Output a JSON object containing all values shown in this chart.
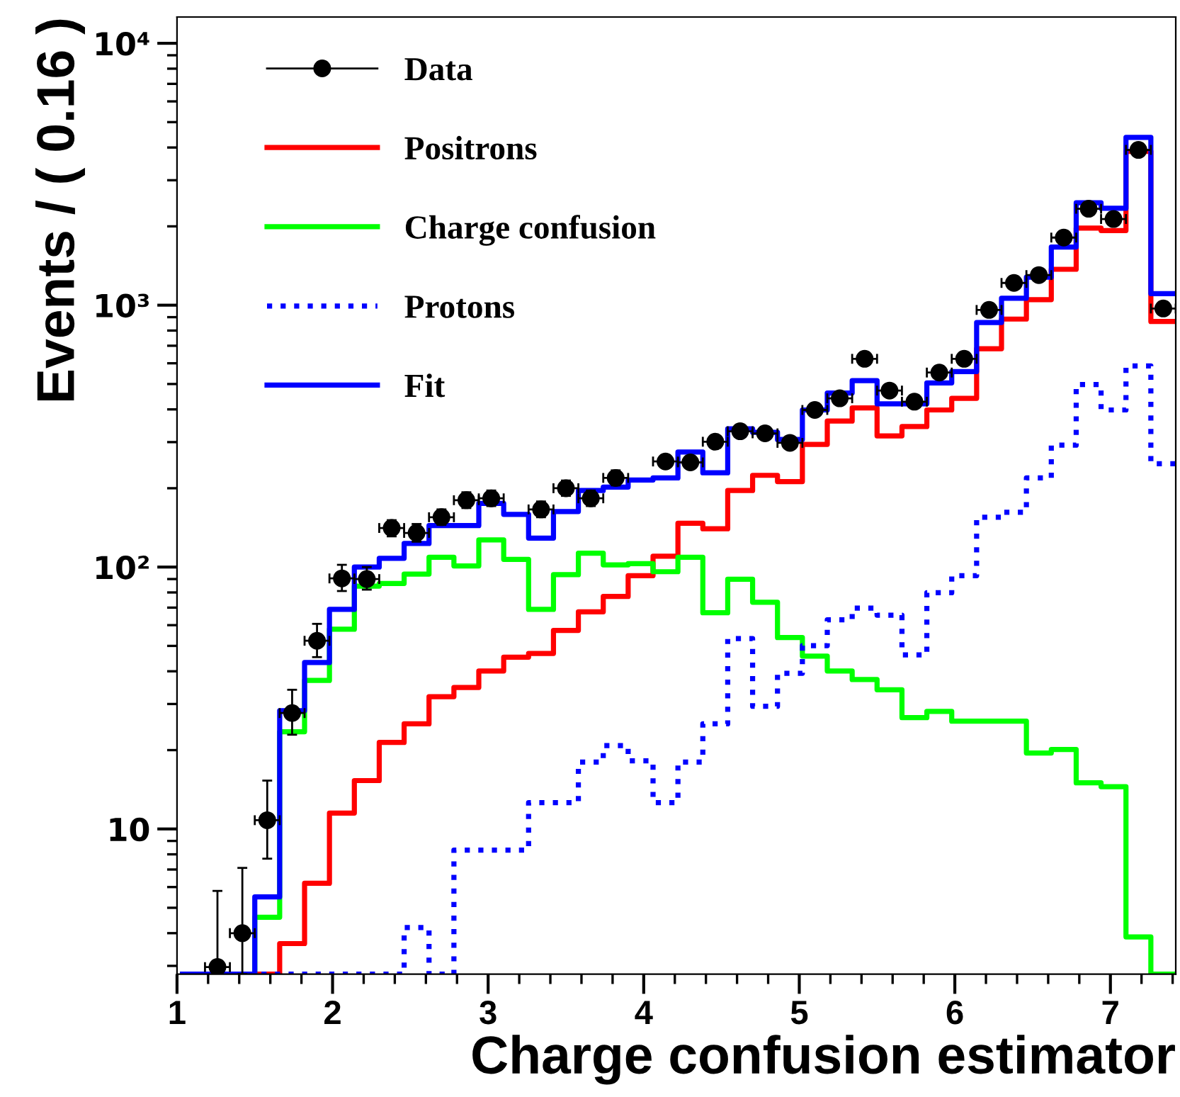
{
  "chart_data": {
    "type": "histogram",
    "xlabel": "Charge confusion estimator",
    "ylabel": "Events / ( 0.16 )",
    "bins": [
      1.02,
      1.18,
      1.34,
      1.5,
      1.66,
      1.82,
      1.98,
      2.14,
      2.3,
      2.46,
      2.62,
      2.78,
      2.94,
      3.1,
      3.26,
      3.42,
      3.58,
      3.74,
      3.9,
      4.06,
      4.22,
      4.38,
      4.54,
      4.7,
      4.86,
      5.02,
      5.18,
      5.34,
      5.5,
      5.66,
      5.82,
      5.98,
      6.14,
      6.3,
      6.46,
      6.62,
      6.78,
      6.94,
      7.1,
      7.26,
      7.42
    ],
    "log": "y",
    "xlim": [
      1,
      7.42
    ],
    "ylim": [
      2.79,
      12600
    ],
    "xticks": [
      1,
      2,
      3,
      4,
      5,
      6,
      7
    ],
    "yticks": [
      {
        "value": 10,
        "label": "10"
      },
      {
        "value": 100,
        "label": "10²"
      },
      {
        "value": 1000,
        "label": "10³"
      },
      {
        "value": 10000,
        "label": "10⁴"
      }
    ],
    "grid": false,
    "legend": "top left",
    "series": [
      {
        "name": "Data",
        "type": "scatter",
        "color": "#000000",
        "marker": "circle",
        "x": [
          1.26,
          1.42,
          1.58,
          1.74,
          1.9,
          2.06,
          2.22,
          2.38,
          2.54,
          2.7,
          2.86,
          3.02,
          3.34,
          3.5,
          3.66,
          3.82,
          4.14,
          4.3,
          4.46,
          4.62,
          4.78,
          4.94,
          5.1,
          5.26,
          5.42,
          5.58,
          5.74,
          5.9,
          6.06,
          6.22,
          6.38,
          6.54,
          6.7,
          6.86,
          7.02,
          7.18,
          7.34
        ],
        "values": [
          2.97,
          4.0,
          10.8,
          27.7,
          52.3,
          90.5,
          90,
          141,
          135,
          155,
          180,
          183,
          166,
          200,
          183,
          219,
          253,
          251,
          301,
          330,
          324,
          298,
          398,
          441,
          624,
          472,
          428,
          553,
          624,
          959,
          1216,
          1303,
          1812,
          2334,
          2133,
          3916,
          971
        ],
        "errors": [
          [
            2.79,
            5.8
          ],
          [
            2.79,
            7.1
          ],
          [
            7.7,
            15.3
          ],
          [
            22.9,
            34
          ],
          [
            45.3,
            60.7
          ],
          [
            81,
            102
          ],
          [
            82,
            100
          ],
          [
            131,
            151
          ],
          [
            125,
            146
          ],
          [
            145,
            166
          ],
          [
            168,
            193
          ],
          [
            171,
            196
          ],
          [
            155,
            178
          ],
          [
            187,
            214
          ],
          [
            171,
            196
          ],
          [
            205,
            234
          ],
          null,
          null,
          null,
          null,
          null,
          null,
          null,
          null,
          null,
          null,
          null,
          null,
          null,
          null,
          null,
          null,
          null,
          null,
          null,
          null,
          null
        ],
        "xerrors": [
          0.08,
          0.08,
          0.08,
          0.08,
          0.08,
          0.08,
          0.08,
          0.08,
          0.08,
          0.08,
          0.08,
          0.08,
          0.08,
          0.08,
          0.08,
          0.08,
          0.08,
          0.08,
          0.08,
          0.08,
          0.08,
          0.08,
          0.08,
          0.08,
          0.08,
          0.08,
          0.08,
          0.08,
          0.08,
          0.08,
          0.08,
          0.08,
          0.08,
          0.08,
          0.08,
          0.08,
          0.08
        ]
      },
      {
        "name": "Positrons",
        "type": "histogram",
        "color": "#ff0000",
        "line_style": "solid",
        "values": [
          null,
          null,
          null,
          null,
          3.65,
          6.2,
          11.5,
          15.3,
          21.4,
          25.2,
          32.0,
          34.7,
          40.1,
          45.3,
          46.8,
          57.3,
          67.5,
          77.2,
          92.7,
          110,
          147,
          140,
          196,
          224,
          212,
          294,
          361,
          405,
          317,
          344,
          398,
          441,
          682,
          885,
          1050,
          1371,
          1968,
          1928,
          3867,
          866
        ]
      },
      {
        "name": "Charge confusion",
        "type": "histogram",
        "color": "#00ff00",
        "line_style": "solid",
        "values": [
          null,
          null,
          null,
          4.6,
          23.5,
          36.9,
          57.9,
          84.6,
          86.6,
          94,
          109,
          101,
          127,
          107,
          68.9,
          93.5,
          113,
          102,
          103,
          96,
          109,
          66.9,
          89.8,
          73.4,
          53.8,
          45.7,
          40.1,
          37.2,
          34.0,
          26.6,
          28.1,
          25.8,
          25.8,
          25.8,
          19.5,
          20.1,
          15.0,
          14.5,
          3.87,
          null
        ]
      },
      {
        "name": "Protons",
        "type": "histogram",
        "color": "#0000ff",
        "line_style": "dotted",
        "values": [
          null,
          null,
          null,
          null,
          null,
          null,
          null,
          null,
          null,
          4.2,
          null,
          8.3,
          8.3,
          8.3,
          12.6,
          12.6,
          18.0,
          20.8,
          18.2,
          12.6,
          18.0,
          25.2,
          53.3,
          29.4,
          39.3,
          50.1,
          62.9,
          69.7,
          65.5,
          46.2,
          79.8,
          92.7,
          155,
          162,
          219,
          292,
          498,
          398,
          586,
          248
        ]
      },
      {
        "name": "Fit",
        "type": "histogram",
        "color": "#0000ff",
        "line_style": "solid",
        "values": [
          null,
          null,
          null,
          5.5,
          28.3,
          43.2,
          68.9,
          100,
          108,
          123,
          144,
          144,
          175,
          159,
          129,
          163,
          196,
          202,
          215,
          219,
          275,
          229,
          337,
          327,
          307,
          398,
          462,
          515,
          420,
          420,
          505,
          558,
          859,
          1063,
          1279,
          1667,
          2462,
          2344,
          4375,
          1107
        ]
      }
    ]
  }
}
